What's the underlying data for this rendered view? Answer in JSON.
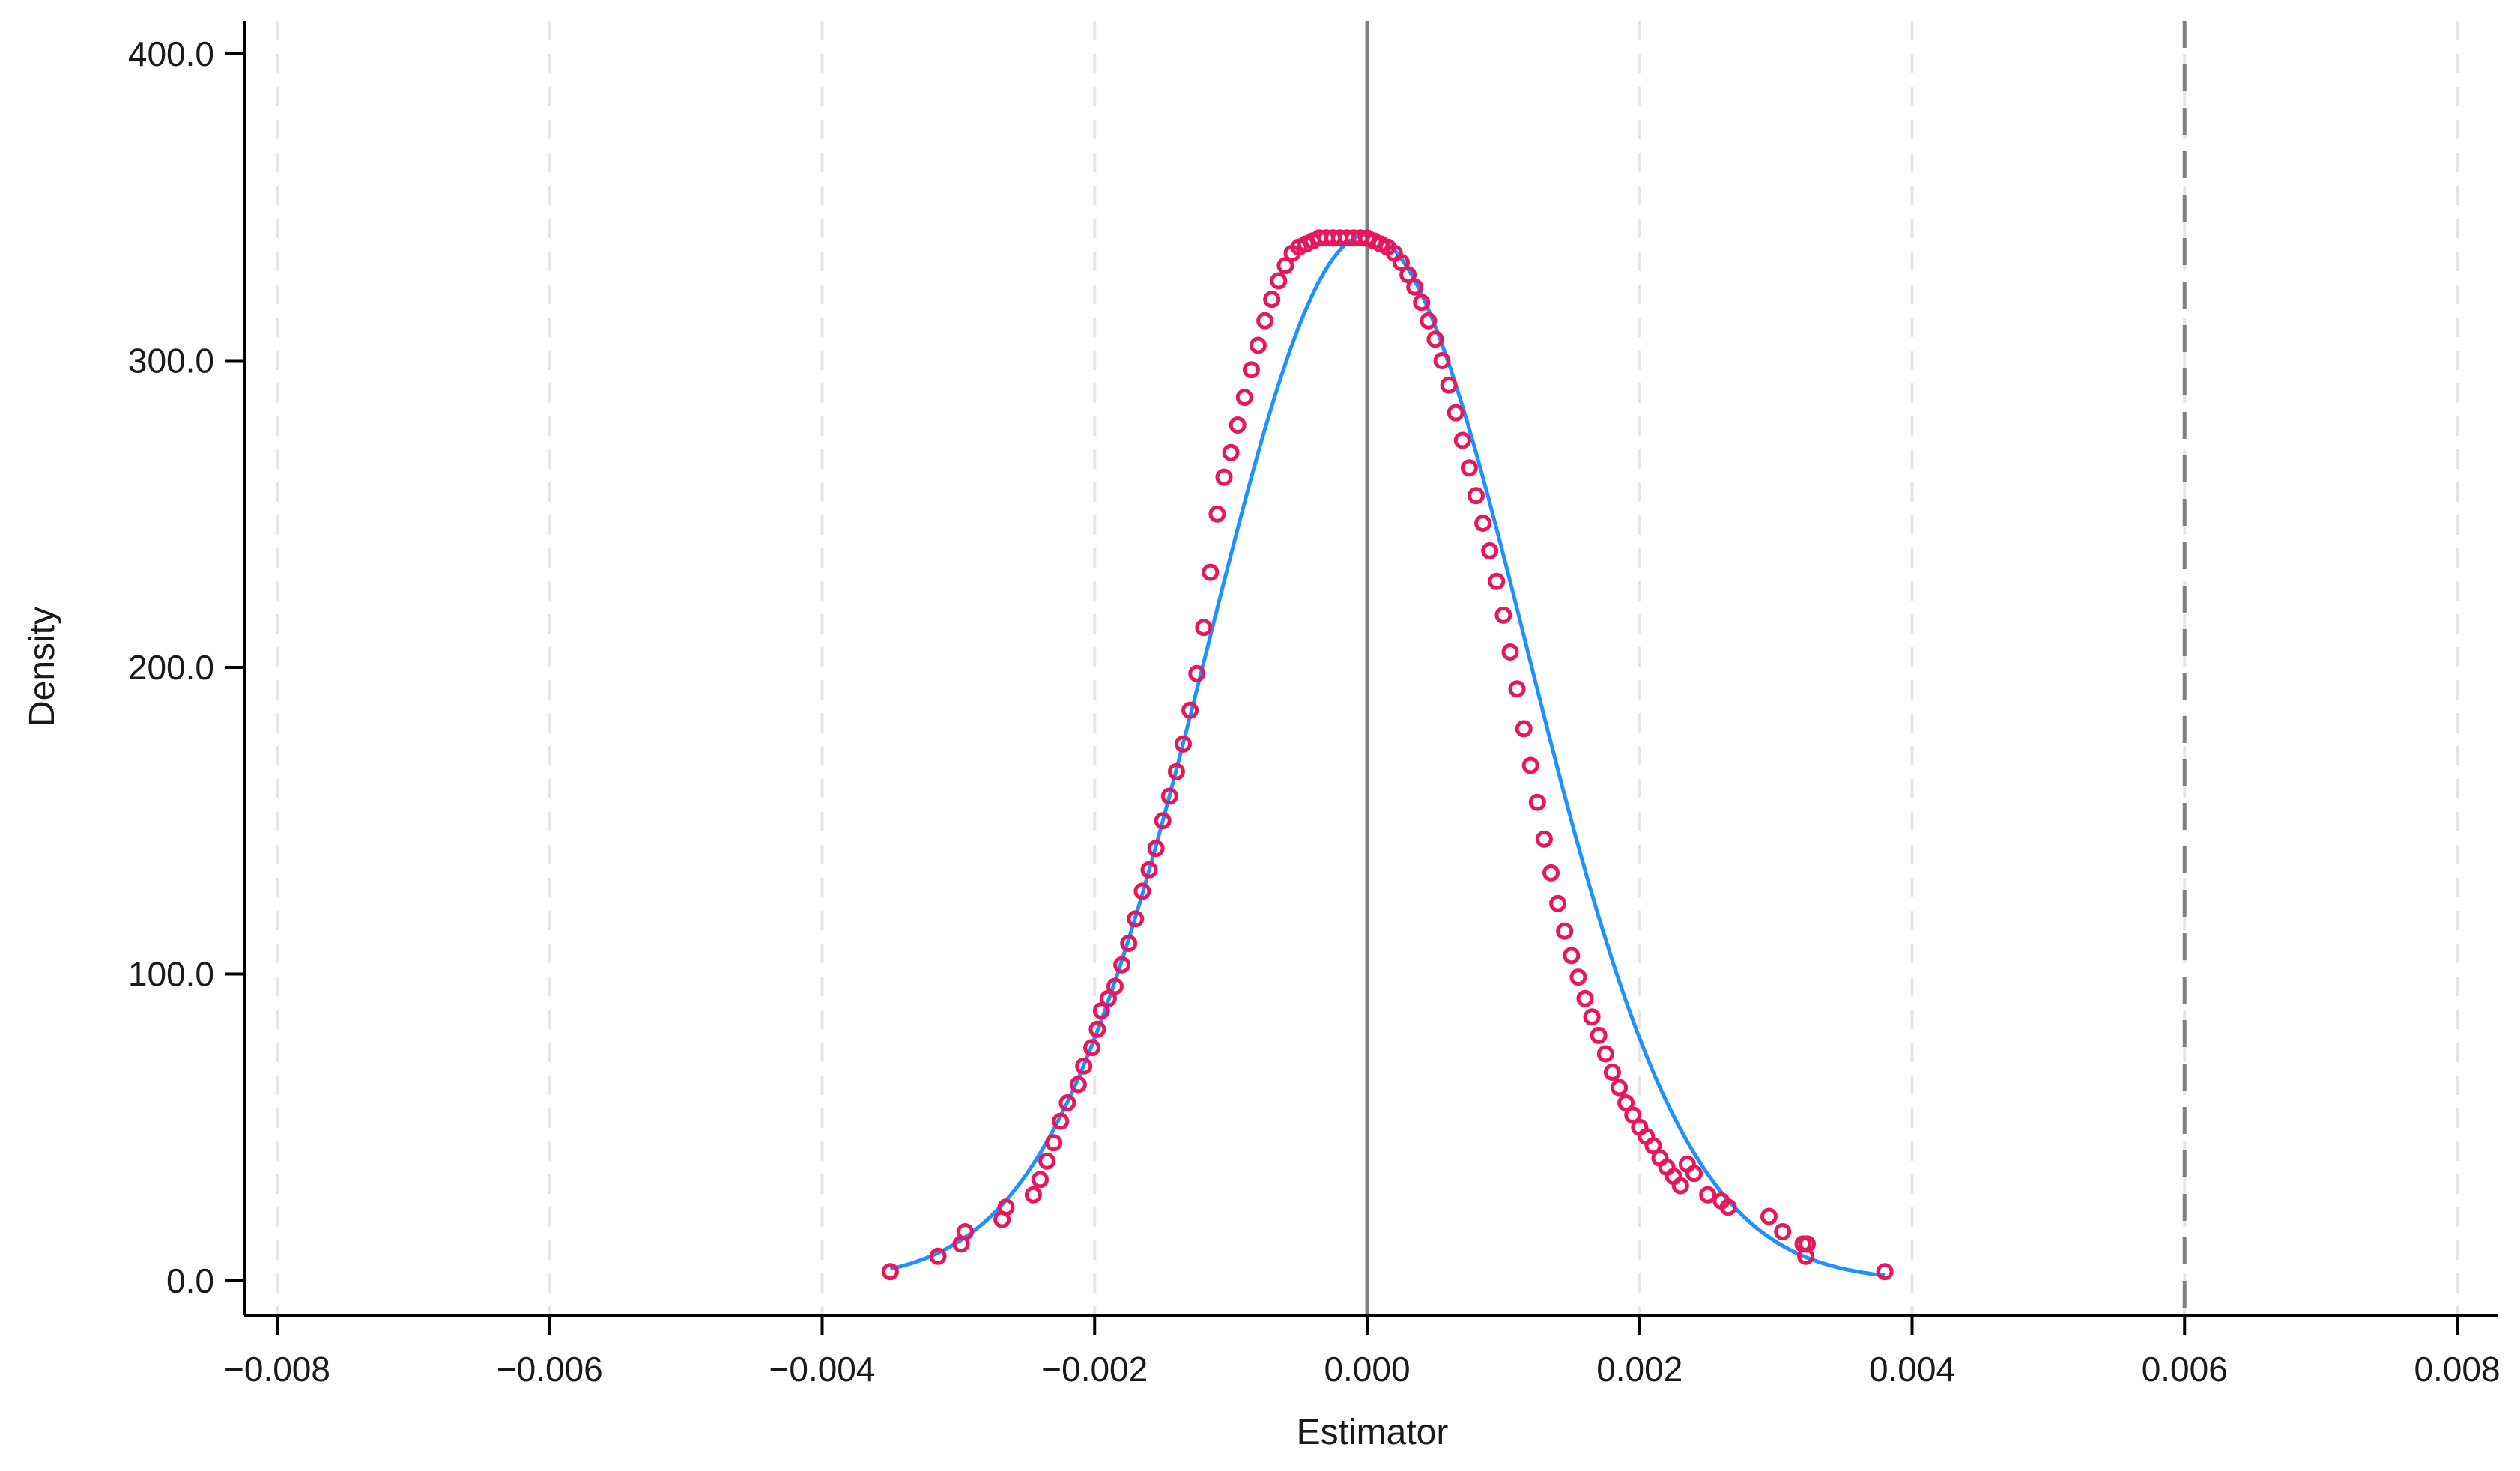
{
  "chart_data": {
    "type": "scatter",
    "title": "",
    "xlabel": "Estimator",
    "ylabel": "Density",
    "xlim": [
      -0.008,
      0.008
    ],
    "ylim": [
      0,
      400
    ],
    "grid": "vertical-dashed",
    "x_ticks": [
      -0.008,
      -0.006,
      -0.004,
      -0.002,
      0.0,
      0.002,
      0.004,
      0.006,
      0.008
    ],
    "x_tick_labels": [
      "−0.008",
      "−0.006",
      "−0.004",
      "−0.002",
      "0.000",
      "0.002",
      "0.004",
      "0.006",
      "0.008"
    ],
    "y_ticks": [
      0,
      100,
      200,
      300,
      400
    ],
    "y_tick_labels": [
      "0.0",
      "100.0",
      "200.0",
      "300.0",
      "400.0"
    ],
    "reference_lines": [
      {
        "x": 0.0,
        "style": "solid",
        "color": "#7f7f7f"
      },
      {
        "x": 0.006,
        "style": "dashed",
        "color": "#7f7f7f"
      }
    ],
    "fitted_curve": {
      "kind": "normal-density",
      "mean": 0.0,
      "sd": 0.00117,
      "x_range": [
        -0.0035,
        0.0038
      ],
      "color": "#1e90ff"
    },
    "points": {
      "color": "#e8175d",
      "x": [
        -0.0035,
        -0.00315,
        -0.00298,
        -0.00295,
        -0.00268,
        -0.00265,
        -0.00245,
        -0.0024,
        -0.00235,
        -0.0023,
        -0.00225,
        -0.0022,
        -0.00212,
        -0.00208,
        -0.00202,
        -0.00198,
        -0.00195,
        -0.0019,
        -0.00185,
        -0.0018,
        -0.00175,
        -0.0017,
        -0.00165,
        -0.0016,
        -0.00155,
        -0.0015,
        -0.00145,
        -0.0014,
        -0.00135,
        -0.0013,
        -0.00125,
        -0.0012,
        -0.00115,
        -0.0011,
        -0.00105,
        -0.001,
        -0.00095,
        -0.0009,
        -0.00085,
        -0.0008,
        -0.00075,
        -0.0007,
        -0.00065,
        -0.0006,
        -0.00055,
        -0.0005,
        -0.00045,
        -0.0004,
        -0.00035,
        -0.0003,
        -0.00025,
        -0.0002,
        -0.00015,
        -0.0001,
        -5e-05,
        0.0,
        5e-05,
        0.0001,
        0.00015,
        0.0002,
        0.00025,
        0.0003,
        0.00035,
        0.0004,
        0.00045,
        0.0005,
        0.00055,
        0.0006,
        0.00065,
        0.0007,
        0.00075,
        0.0008,
        0.00085,
        0.0009,
        0.00095,
        0.001,
        0.00105,
        0.0011,
        0.00115,
        0.0012,
        0.00125,
        0.0013,
        0.00135,
        0.0014,
        0.00145,
        0.0015,
        0.00155,
        0.0016,
        0.00165,
        0.0017,
        0.00175,
        0.0018,
        0.00185,
        0.0019,
        0.00195,
        0.002,
        0.00205,
        0.0021,
        0.00215,
        0.0022,
        0.00225,
        0.0023,
        0.00235,
        0.0024,
        0.0025,
        0.0026,
        0.00265,
        0.00295,
        0.00305,
        0.0032,
        0.00322,
        0.00323,
        0.0038
      ],
      "y": [
        3,
        8,
        12,
        16,
        20,
        24,
        28,
        33,
        39,
        45,
        52,
        58,
        64,
        70,
        76,
        82,
        88,
        92,
        96,
        103,
        110,
        118,
        127,
        134,
        141,
        150,
        158,
        166,
        175,
        186,
        198,
        213,
        231,
        250,
        262,
        270,
        279,
        288,
        297,
        305,
        313,
        320,
        326,
        331,
        335,
        337,
        338,
        339,
        340,
        340,
        340,
        340,
        340,
        340,
        340,
        340,
        339,
        338,
        337,
        335,
        332,
        328,
        324,
        319,
        313,
        307,
        300,
        292,
        283,
        274,
        265,
        256,
        247,
        238,
        228,
        217,
        205,
        193,
        180,
        168,
        156,
        144,
        133,
        123,
        114,
        106,
        99,
        92,
        86,
        80,
        74,
        68,
        63,
        58,
        54,
        50,
        47,
        44,
        40,
        37,
        34,
        31,
        38,
        35,
        28,
        26,
        24,
        21,
        16,
        12,
        8,
        12,
        3
      ]
    }
  }
}
